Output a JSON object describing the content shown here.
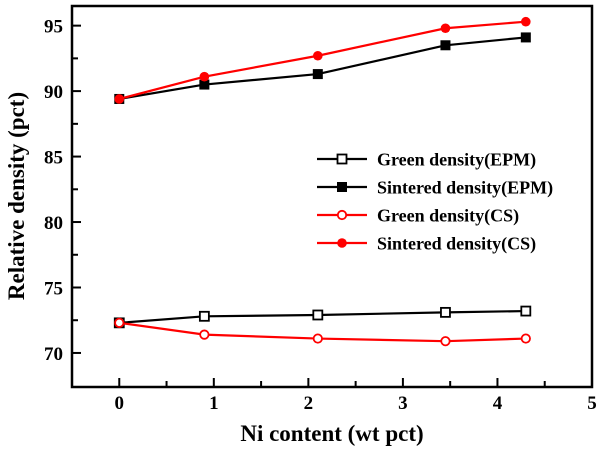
{
  "figure": {
    "background": "#ffffff",
    "axis_color": "#000000",
    "accent_red": "#ff0000"
  },
  "chart_data": {
    "type": "line",
    "title": "",
    "xlabel": "Ni content (wt pct)",
    "ylabel": "Relative density (pct)",
    "xlim": [
      -0.5,
      5.0
    ],
    "ylim": [
      67.4,
      96.5
    ],
    "grid": false,
    "legend_position": "inside-middle-right",
    "x_major_ticks": [
      0,
      1,
      2,
      3,
      4,
      5
    ],
    "x_minor_ticks": [
      0.5,
      1.5,
      2.5,
      3.5,
      4.5
    ],
    "y_major_ticks": [
      70,
      75,
      80,
      85,
      90,
      95
    ],
    "y_minor_ticks": [
      72.5,
      77.5,
      82.5,
      87.5,
      92.5
    ],
    "x": [
      0,
      0.9,
      2.1,
      3.45,
      4.3
    ],
    "series": [
      {
        "name": "Green density(EPM)",
        "values": [
          72.3,
          72.8,
          72.9,
          73.1,
          73.2
        ],
        "color": "#000000",
        "marker": "square-open"
      },
      {
        "name": "Sintered density(EPM)",
        "values": [
          89.4,
          90.5,
          91.3,
          93.5,
          94.1
        ],
        "color": "#000000",
        "marker": "square-filled"
      },
      {
        "name": "Green density(CS)",
        "values": [
          72.3,
          71.4,
          71.1,
          70.9,
          71.1
        ],
        "color": "#ff0000",
        "marker": "circle-open"
      },
      {
        "name": "Sintered density(CS)",
        "values": [
          89.4,
          91.1,
          92.7,
          94.8,
          95.3
        ],
        "color": "#ff0000",
        "marker": "circle-filled"
      }
    ]
  }
}
